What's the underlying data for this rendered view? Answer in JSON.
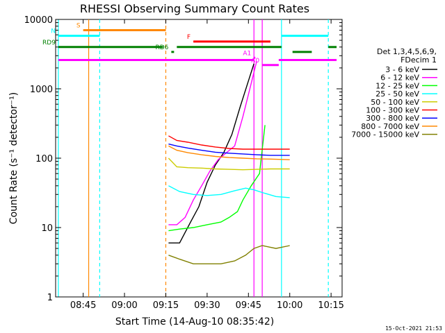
{
  "chart_data": {
    "type": "line",
    "title": "RHESSI Observing Summary Count Rates",
    "xlabel": "Start Time (14-Aug-10 08:35:42)",
    "ylabel": "Count Rate (s⁻¹ detector⁻¹)",
    "yscale": "log",
    "ylim": [
      1,
      10000
    ],
    "xlim": [
      "08:35:42",
      "10:19:00"
    ],
    "x_ticks": [
      "08:45",
      "09:00",
      "09:15",
      "09:30",
      "09:45",
      "10:00",
      "10:15"
    ],
    "y_ticks": [
      "1",
      "10",
      "100",
      "1000",
      "10000"
    ],
    "legend_header": [
      "Det 1,3,4,5,6,9,",
      "FDecim 1"
    ],
    "legend_position": "right",
    "series": [
      {
        "name": "3 - 6 keV",
        "color": "#000000",
        "points": [
          [
            "09:16",
            6
          ],
          [
            "09:20",
            6
          ],
          [
            "09:24",
            12
          ],
          [
            "09:27",
            20
          ],
          [
            "09:30",
            45
          ],
          [
            "09:33",
            80
          ],
          [
            "09:36",
            120
          ],
          [
            "09:39",
            220
          ],
          [
            "09:42",
            550
          ],
          [
            "09:45",
            1300
          ],
          [
            "09:47",
            2300
          ]
        ]
      },
      {
        "name": "6 - 12 keV",
        "color": "#ff00ff",
        "points": [
          [
            "09:16",
            11
          ],
          [
            "09:19",
            11
          ],
          [
            "09:22",
            14
          ],
          [
            "09:25",
            25
          ],
          [
            "09:28",
            40
          ],
          [
            "09:31",
            65
          ],
          [
            "09:34",
            95
          ],
          [
            "09:37",
            120
          ],
          [
            "09:40",
            150
          ],
          [
            "09:43",
            400
          ],
          [
            "09:46",
            1200
          ],
          [
            "09:48",
            2500
          ]
        ]
      },
      {
        "name": "12 - 25 keV",
        "color": "#00ff00",
        "points": [
          [
            "09:16",
            9
          ],
          [
            "09:20",
            9.5
          ],
          [
            "09:25",
            10
          ],
          [
            "09:30",
            11
          ],
          [
            "09:35",
            12
          ],
          [
            "09:38",
            14
          ],
          [
            "09:41",
            17
          ],
          [
            "09:43",
            25
          ],
          [
            "09:46",
            40
          ],
          [
            "09:49",
            60
          ],
          [
            "09:51",
            300
          ]
        ]
      },
      {
        "name": "25 - 50 keV",
        "color": "#00ffff",
        "points": [
          [
            "09:16",
            40
          ],
          [
            "09:20",
            33
          ],
          [
            "09:25",
            30
          ],
          [
            "09:30",
            29
          ],
          [
            "09:35",
            30
          ],
          [
            "09:40",
            34
          ],
          [
            "09:44",
            37
          ],
          [
            "09:47",
            35
          ],
          [
            "09:50",
            32
          ],
          [
            "09:55",
            28
          ],
          [
            "10:00",
            27
          ]
        ]
      },
      {
        "name": "50 - 100 keV",
        "color": "#cccc00",
        "points": [
          [
            "09:16",
            100
          ],
          [
            "09:19",
            75
          ],
          [
            "09:23",
            73
          ],
          [
            "09:28",
            72
          ],
          [
            "09:33",
            70
          ],
          [
            "09:38",
            69
          ],
          [
            "09:43",
            68
          ],
          [
            "09:48",
            69
          ],
          [
            "09:53",
            70
          ],
          [
            "10:00",
            70
          ]
        ]
      },
      {
        "name": "100 - 300 keV",
        "color": "#ff0000",
        "points": [
          [
            "09:16",
            210
          ],
          [
            "09:19",
            180
          ],
          [
            "09:23",
            170
          ],
          [
            "09:28",
            155
          ],
          [
            "09:33",
            145
          ],
          [
            "09:38",
            138
          ],
          [
            "09:43",
            135
          ],
          [
            "09:48",
            135
          ],
          [
            "09:53",
            135
          ],
          [
            "10:00",
            135
          ]
        ]
      },
      {
        "name": "300 - 800 keV",
        "color": "#0000ff",
        "points": [
          [
            "09:16",
            160
          ],
          [
            "09:19",
            150
          ],
          [
            "09:23",
            140
          ],
          [
            "09:28",
            130
          ],
          [
            "09:33",
            122
          ],
          [
            "09:38",
            118
          ],
          [
            "09:43",
            115
          ],
          [
            "09:48",
            112
          ],
          [
            "09:53",
            110
          ],
          [
            "10:00",
            110
          ]
        ]
      },
      {
        "name": "800 - 7000 keV",
        "color": "#ff8800",
        "points": [
          [
            "09:16",
            150
          ],
          [
            "09:19",
            130
          ],
          [
            "09:23",
            120
          ],
          [
            "09:28",
            112
          ],
          [
            "09:33",
            106
          ],
          [
            "09:38",
            102
          ],
          [
            "09:43",
            100
          ],
          [
            "09:48",
            98
          ],
          [
            "09:53",
            97
          ],
          [
            "10:00",
            95
          ]
        ]
      },
      {
        "name": "7000 - 15000 keV",
        "color": "#808000",
        "points": [
          [
            "09:16",
            4
          ],
          [
            "09:20",
            3.5
          ],
          [
            "09:25",
            3
          ],
          [
            "09:30",
            3
          ],
          [
            "09:35",
            3
          ],
          [
            "09:40",
            3.3
          ],
          [
            "09:44",
            4
          ],
          [
            "09:47",
            5
          ],
          [
            "09:50",
            5.5
          ],
          [
            "09:55",
            5
          ],
          [
            "10:00",
            5.5
          ]
        ]
      }
    ],
    "flag_bars": [
      {
        "label": "S",
        "color": "#ff8800",
        "level": 7000,
        "segments": [
          [
            "08:45",
            "09:15"
          ]
        ]
      },
      {
        "label": "N",
        "color": "#00ffff",
        "level": 5800,
        "segments": [
          [
            "08:36",
            "08:51"
          ],
          [
            "09:57",
            "10:14"
          ]
        ]
      },
      {
        "label": "F",
        "color": "#ff0000",
        "level": 4800,
        "segments": [
          [
            "09:25",
            "09:53"
          ]
        ]
      },
      {
        "label": "RD9",
        "color": "#008000",
        "level": 4000,
        "segments": [
          [
            "08:36",
            "09:14"
          ],
          [
            "09:19",
            "09:57"
          ],
          [
            "10:14",
            "10:17"
          ]
        ]
      },
      {
        "label": "RD6",
        "color": "#008000",
        "level": 3400,
        "segments": [
          [
            "09:17",
            "09:18"
          ],
          [
            "10:01",
            "10:08"
          ]
        ]
      },
      {
        "label": "A1",
        "color": "#ff00ff",
        "level": 2800,
        "segments": [
          [
            "09:47",
            "09:47"
          ]
        ]
      },
      {
        "label": "A0",
        "color": "#ff00ff",
        "level": 2200,
        "segments": [
          [
            "09:50",
            "09:56"
          ]
        ]
      },
      {
        "label": "",
        "color": "#ff00ff",
        "level": 2600,
        "segments": [
          [
            "08:36",
            "09:47"
          ],
          [
            "09:56",
            "10:17"
          ]
        ]
      }
    ],
    "markers": [
      {
        "time": "08:47",
        "color": "#ff8800",
        "style": "solid"
      },
      {
        "time": "09:15",
        "color": "#ff8800",
        "style": "dashed"
      },
      {
        "time": "08:51",
        "color": "#00ffff",
        "style": "dashed"
      },
      {
        "time": "09:57",
        "color": "#00ffff",
        "style": "solid"
      },
      {
        "time": "10:14",
        "color": "#00ffff",
        "style": "dashed"
      },
      {
        "time": "08:36",
        "color": "#00ffff",
        "style": "solid"
      },
      {
        "time": "09:47",
        "color": "#ff00ff",
        "style": "solid"
      },
      {
        "time": "09:50",
        "color": "#ff00ff",
        "style": "solid"
      }
    ],
    "grid": false
  },
  "footer": "15-Oct-2021 21:53"
}
